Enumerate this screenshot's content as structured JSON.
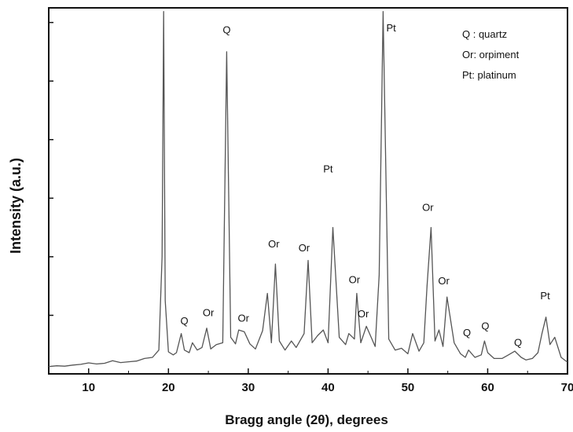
{
  "chart_data": {
    "type": "line",
    "title": "",
    "xlabel": "Bragg angle (2θ), degrees",
    "ylabel": "Intensity (a.u.)",
    "xlim": [
      5,
      70
    ],
    "ylim": [
      0,
      100
    ],
    "xticks": [
      10,
      20,
      30,
      40,
      50,
      60,
      70
    ],
    "grid": false,
    "legend": {
      "placement": "top-right",
      "entries": [
        "Q : quartz",
        "Or: orpiment",
        "Pt: platinum"
      ]
    },
    "series": [
      {
        "x": [
          5,
          6,
          7,
          8,
          9,
          10,
          11,
          12,
          13,
          14,
          15,
          16,
          17,
          18,
          18.8,
          19.2,
          19.4,
          19.6,
          20,
          20.6,
          21,
          21.6,
          22,
          22.6,
          23,
          23.6,
          24.2,
          24.8,
          25.3,
          26,
          26.8,
          27.3,
          27.8,
          28.4,
          28.8,
          29.5,
          30.2,
          30.9,
          31.8,
          32.4,
          32.9,
          33.4,
          33.9,
          34.6,
          35.4,
          36,
          37,
          37.5,
          38,
          38.7,
          39.4,
          40,
          40.6,
          41.4,
          42.2,
          42.6,
          43.3,
          43.6,
          44.1,
          44.8,
          45.4,
          45.9,
          46.4,
          46.9,
          47.6,
          48.4,
          49.2,
          50,
          50.6,
          51.4,
          52,
          52.4,
          52.9,
          53.4,
          53.9,
          54.4,
          54.9,
          55.8,
          56.6,
          57.2,
          57.6,
          58.4,
          59.2,
          59.6,
          60,
          60.8,
          61.8,
          62.6,
          63.4,
          64.2,
          64.8,
          65.6,
          66.3,
          66.8,
          67.3,
          67.8,
          68.4,
          69.2,
          70
        ],
        "y": [
          2,
          2.2,
          2.1,
          2.4,
          2.6,
          3,
          2.7,
          2.9,
          3.6,
          3.1,
          3.3,
          3.5,
          4.2,
          4.5,
          6.5,
          32,
          99,
          20,
          6,
          5.2,
          5.8,
          11,
          6.5,
          5.8,
          8.5,
          6.5,
          7.2,
          12.5,
          6.8,
          8,
          8.5,
          88,
          10,
          8.2,
          12,
          11.5,
          8.2,
          6.8,
          11.8,
          22,
          8.5,
          30,
          9,
          6.5,
          9,
          7.2,
          11,
          31,
          8.5,
          10.5,
          12,
          8.5,
          40,
          10,
          8,
          11,
          9.5,
          22,
          8.5,
          13,
          10,
          7.5,
          27,
          99,
          9.5,
          6.5,
          7,
          5.5,
          11,
          6.2,
          8.5,
          24,
          40,
          9,
          12,
          7.5,
          21,
          8.5,
          5.5,
          4.5,
          6.5,
          4.5,
          5.2,
          9,
          5.8,
          4.2,
          4.2,
          5.2,
          6.2,
          4.5,
          3.8,
          4.2,
          5.8,
          11,
          15.5,
          8,
          10,
          4.5,
          3.2
        ]
      }
    ],
    "annotations": [
      {
        "text": "Q",
        "x": 27.3,
        "y": 93
      },
      {
        "text": "Pt",
        "x": 47.9,
        "y": 93.6
      },
      {
        "text": "Pt",
        "x": 40,
        "y": 55
      },
      {
        "text": "Or",
        "x": 33.2,
        "y": 34.5
      },
      {
        "text": "Or",
        "x": 37,
        "y": 33.5
      },
      {
        "text": "Or",
        "x": 52.5,
        "y": 44.5
      },
      {
        "text": "Or",
        "x": 54.5,
        "y": 24.5
      },
      {
        "text": "Or",
        "x": 43.3,
        "y": 24.8
      },
      {
        "text": "Or",
        "x": 44.4,
        "y": 15.5
      },
      {
        "text": "Or",
        "x": 25,
        "y": 15.8
      },
      {
        "text": "Or",
        "x": 29.4,
        "y": 14.3
      },
      {
        "text": "Q",
        "x": 22,
        "y": 13.5
      },
      {
        "text": "Q",
        "x": 57.4,
        "y": 10.3
      },
      {
        "text": "Q",
        "x": 59.7,
        "y": 12.1
      },
      {
        "text": "Q",
        "x": 63.8,
        "y": 7.6
      },
      {
        "text": "Pt",
        "x": 67.2,
        "y": 20.4
      }
    ]
  },
  "colors": {
    "line": "#555555",
    "axis": "#111111",
    "text": "#111111"
  }
}
